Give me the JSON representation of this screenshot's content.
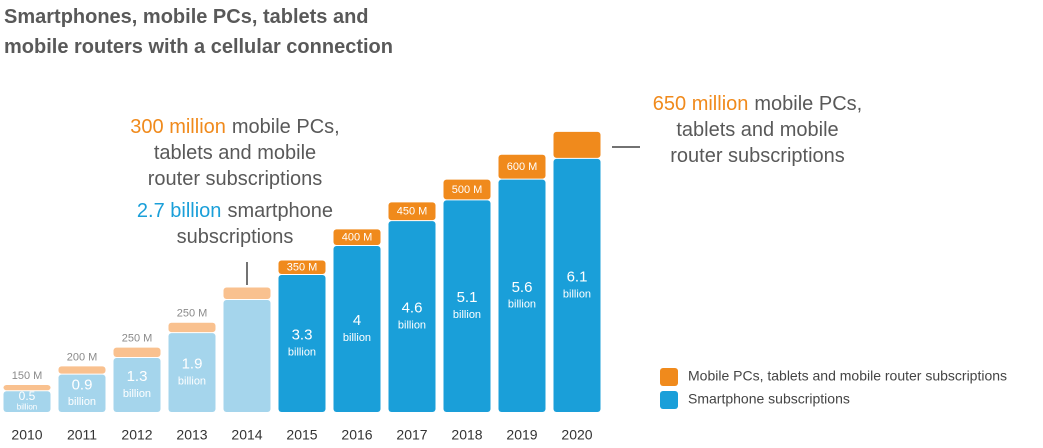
{
  "chart_data": {
    "type": "stacked_bar",
    "title": "Smartphones, mobile PCs, tablets and mobile routers with a cellular connection",
    "categories": [
      "2010",
      "2011",
      "2012",
      "2013",
      "2014",
      "2015",
      "2016",
      "2017",
      "2018",
      "2019",
      "2020"
    ],
    "unit_label": "billion",
    "series": [
      {
        "name": "Mobile PCs, tablets and mobile router subscriptions",
        "color": "#f08a1c",
        "colors": [
          "#f9c18f",
          "#f9c18f",
          "#f9c18f",
          "#f9c18f",
          "#f9c18f",
          "#f08a1c",
          "#f08a1c",
          "#f08a1c",
          "#f08a1c",
          "#f08a1c",
          "#f08a1c"
        ],
        "values": [
          0.15,
          0.2,
          0.25,
          0.25,
          0.3,
          0.35,
          0.4,
          0.45,
          0.5,
          0.6,
          0.65
        ],
        "value_labels": [
          "150 M",
          "200 M",
          "250 M",
          "250 M",
          null,
          "350 M",
          "400 M",
          "450 M",
          "500 M",
          "600 M",
          null
        ],
        "label_positions": [
          "above",
          "above",
          "above",
          "above",
          null,
          "inside",
          "inside",
          "inside",
          "inside",
          "inside",
          null
        ]
      },
      {
        "name": "Smartphone subscriptions",
        "color": "#1a9fd9",
        "colors": [
          "#a5d5ec",
          "#a5d5ec",
          "#a5d5ec",
          "#a5d5ec",
          "#a5d5ec",
          "#1a9fd9",
          "#1a9fd9",
          "#1a9fd9",
          "#1a9fd9",
          "#1a9fd9",
          "#1a9fd9"
        ],
        "values": [
          0.5,
          0.9,
          1.3,
          1.9,
          2.7,
          3.3,
          4,
          4.6,
          5.1,
          5.6,
          6.1
        ],
        "value_labels": [
          "0.5",
          "0.9",
          "1.3",
          "1.9",
          null,
          "3.3",
          "4",
          "4.6",
          "5.1",
          "5.6",
          "6.1"
        ]
      }
    ],
    "annotations": [
      {
        "highlight": "300 million",
        "color": "#f08a1c",
        "lines": [
          "mobile PCs,",
          "tablets and mobile",
          "router subscriptions"
        ]
      },
      {
        "highlight": "2.7 billion",
        "color": "#1a9fd9",
        "lines": [
          "smartphone",
          "subscriptions"
        ]
      },
      {
        "highlight": "650 million",
        "color": "#f08a1c",
        "lines": [
          "mobile PCs,",
          "tablets and mobile",
          "router subscriptions"
        ]
      }
    ]
  }
}
